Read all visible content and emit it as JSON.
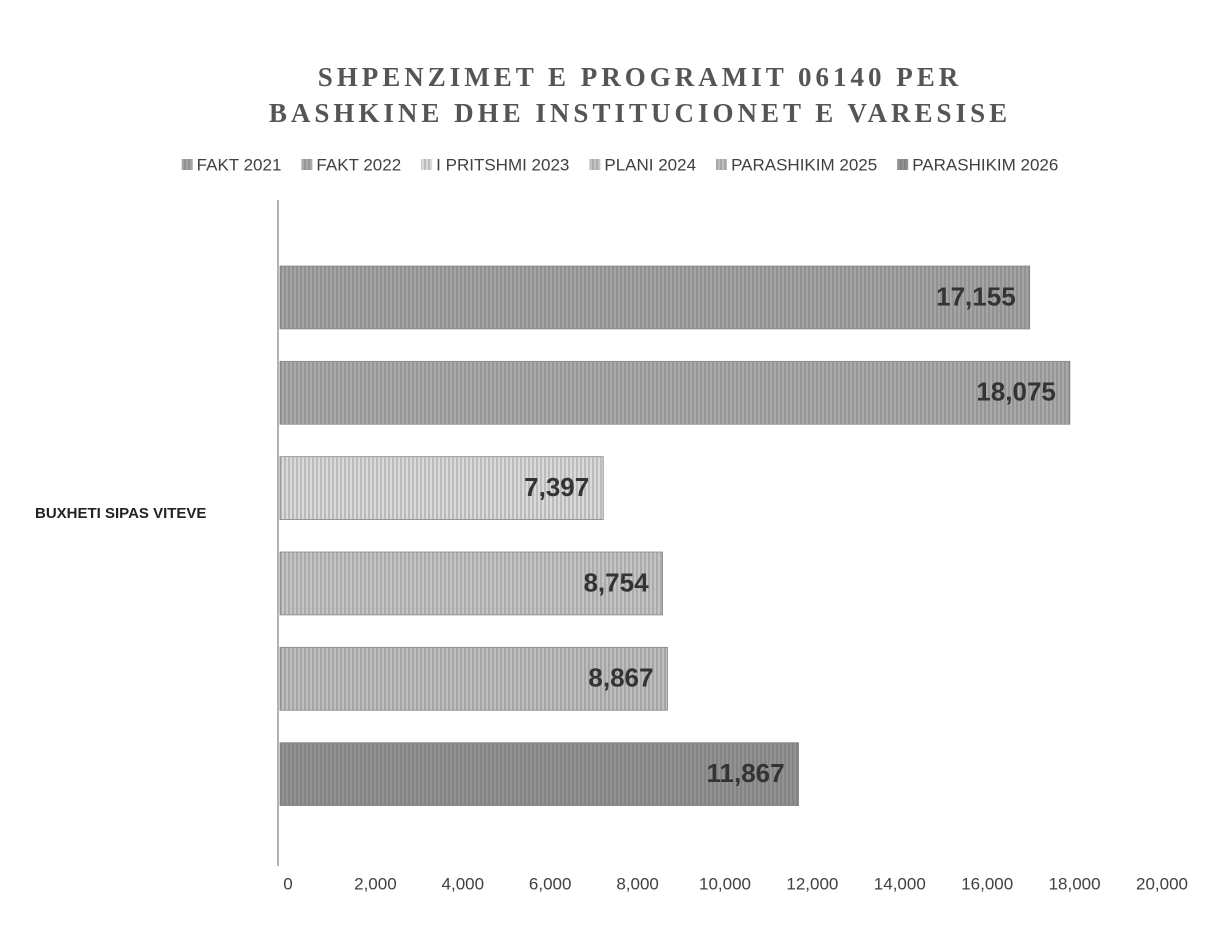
{
  "chart_data": {
    "type": "hbar",
    "title": [
      "SHPENZIMET E PROGRAMIT 06140 PER",
      "BASHKINE DHE INSTITUCIONET E VARESISE"
    ],
    "categories": [
      "BUXHETI SIPAS VITEVE"
    ],
    "series": [
      {
        "name": "FAKT 2021",
        "color": "#a4a4a4",
        "values": [
          17155
        ],
        "value_labels": [
          "17,155"
        ]
      },
      {
        "name": "FAKT 2022",
        "color": "#aaaaaa",
        "values": [
          18075
        ],
        "value_labels": [
          "18,075"
        ]
      },
      {
        "name": "I PRITSHMI 2023",
        "color": "#dadada",
        "values": [
          7397
        ],
        "value_labels": [
          "7,397"
        ]
      },
      {
        "name": "PLANI 2024",
        "color": "#c4c4c4",
        "values": [
          8754
        ],
        "value_labels": [
          "8,754"
        ]
      },
      {
        "name": "PARASHIKIM 2025",
        "color": "#bebebe",
        "values": [
          8867
        ],
        "value_labels": [
          "8,867"
        ]
      },
      {
        "name": "PARASHIKIM 2026",
        "color": "#929292",
        "values": [
          11867
        ],
        "value_labels": [
          "11,867"
        ]
      }
    ],
    "xlim": [
      0,
      20000
    ],
    "xticks": [
      0,
      {
        "value": 2000,
        "label": "2,000"
      },
      {
        "value": 4000,
        "label": "4,000"
      },
      {
        "value": 6000,
        "label": "6,000"
      },
      {
        "value": 8000,
        "label": "8,000"
      },
      {
        "value": 10000,
        "label": "10,000"
      },
      {
        "value": 12000,
        "label": "12,000"
      },
      {
        "value": 14000,
        "label": "14,000"
      },
      {
        "value": 16000,
        "label": "16,000"
      },
      {
        "value": 18000,
        "label": "18,000"
      },
      {
        "value": 20000,
        "label": "20,000"
      }
    ],
    "grid": false,
    "legend": "top"
  }
}
